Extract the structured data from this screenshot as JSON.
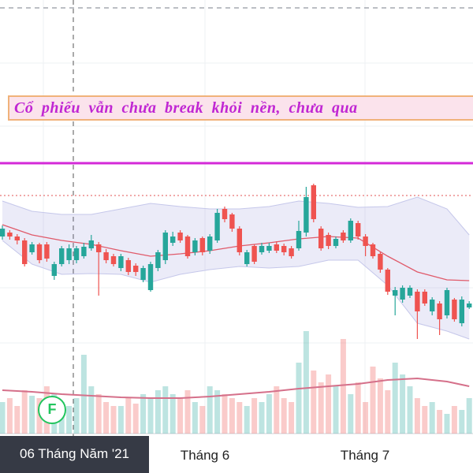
{
  "chart_data": {
    "type": "candlestick",
    "annotation": "Cổ phiếu vẫn chưa break khỏi nền, chưa qua",
    "crosshair_label": "06 Tháng Năm '21",
    "marker_label": "F",
    "xtick_labels": [
      "Tháng 6",
      "Tháng 7"
    ],
    "ylim": [
      0,
      600
    ],
    "volume_ylim": [
      0,
      550
    ],
    "up_color": "#26a69a",
    "down_color": "#ef5350",
    "candles": {
      "open": [
        300,
        305,
        300,
        295,
        280,
        290,
        290,
        250,
        265,
        270,
        270,
        275,
        285,
        290,
        280,
        275,
        260,
        270,
        263,
        245,
        232,
        260,
        270,
        292,
        305,
        300,
        280,
        298,
        282,
        295,
        335,
        328,
        310,
        265,
        288,
        280,
        282,
        290,
        288,
        285,
        285,
        305,
        365,
        310,
        302,
        288,
        305,
        295,
        317,
        300,
        290,
        278,
        258,
        225,
        220,
        225,
        230,
        230,
        205,
        215,
        200,
        220,
        190,
        210
      ],
      "high": [
        314,
        308,
        303,
        298,
        293,
        292,
        293,
        268,
        288,
        290,
        288,
        292,
        302,
        293,
        284,
        278,
        278,
        273,
        266,
        263,
        268,
        283,
        308,
        306,
        308,
        302,
        298,
        300,
        303,
        335,
        338,
        330,
        313,
        283,
        290,
        292,
        292,
        294,
        291,
        288,
        320,
        363,
        367,
        313,
        305,
        300,
        308,
        323,
        320,
        303,
        292,
        280,
        260,
        236,
        238,
        238,
        233,
        233,
        223,
        218,
        235,
        222,
        224,
        218
      ],
      "low": [
        296,
        296,
        290,
        262,
        277,
        266,
        268,
        245,
        262,
        265,
        266,
        272,
        282,
        225,
        266,
        262,
        256,
        251,
        250,
        242,
        230,
        256,
        265,
        288,
        292,
        272,
        276,
        276,
        278,
        292,
        318,
        306,
        276,
        262,
        265,
        277,
        279,
        279,
        276,
        272,
        282,
        300,
        318,
        282,
        284,
        285,
        292,
        292,
        296,
        275,
        272,
        254,
        226,
        200,
        216,
        222,
        170,
        212,
        200,
        175,
        196,
        192,
        186,
        208
      ],
      "close": [
        310,
        300,
        295,
        265,
        290,
        270,
        272,
        265,
        285,
        285,
        285,
        287,
        295,
        280,
        270,
        265,
        275,
        255,
        255,
        260,
        265,
        280,
        305,
        300,
        295,
        275,
        295,
        280,
        300,
        330,
        322,
        310,
        280,
        280,
        268,
        288,
        288,
        282,
        280,
        275,
        307,
        350,
        322,
        285,
        288,
        297,
        295,
        320,
        300,
        288,
        275,
        258,
        230,
        232,
        235,
        235,
        205,
        215,
        220,
        195,
        232,
        195,
        220,
        215
      ],
      "volume": [
        40,
        45,
        35,
        55,
        48,
        45,
        60,
        50,
        40,
        35,
        45,
        100,
        60,
        50,
        40,
        35,
        35,
        45,
        38,
        50,
        45,
        55,
        60,
        50,
        45,
        55,
        40,
        35,
        60,
        55,
        50,
        45,
        40,
        35,
        45,
        40,
        50,
        60,
        45,
        40,
        90,
        130,
        80,
        65,
        75,
        60,
        120,
        50,
        65,
        40,
        85,
        70,
        55,
        90,
        75,
        60,
        45,
        35,
        40,
        30,
        25,
        35,
        30,
        45
      ]
    },
    "bands": {
      "x": [
        0,
        4,
        8,
        12,
        16,
        20,
        24,
        28,
        32,
        36,
        40,
        44,
        48,
        52,
        56,
        60,
        63
      ],
      "upper": [
        345,
        332,
        328,
        328,
        335,
        342,
        338,
        335,
        335,
        338,
        345,
        342,
        337,
        338,
        350,
        335,
        302
      ],
      "middle": [
        315,
        302,
        295,
        290,
        282,
        275,
        278,
        282,
        288,
        292,
        297,
        300,
        298,
        275,
        255,
        245,
        244
      ],
      "lower": [
        295,
        265,
        252,
        253,
        252,
        242,
        252,
        258,
        262,
        260,
        262,
        270,
        270,
        238,
        190,
        180,
        170
      ],
      "volume_ma": [
        55,
        53,
        50,
        48,
        46,
        45,
        45,
        47,
        50,
        53,
        57,
        60,
        63,
        68,
        70,
        66,
        60
      ]
    },
    "resistance_level": 393,
    "dotted_level": 352
  }
}
